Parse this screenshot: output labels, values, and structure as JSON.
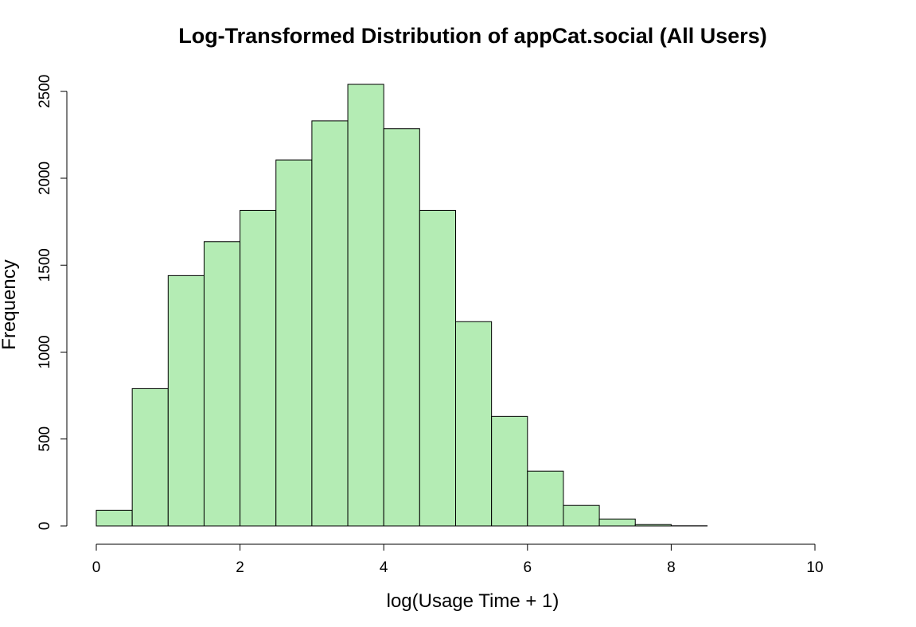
{
  "chart_data": {
    "type": "bar",
    "title": "Log-Transformed Distribution of appCat.social (All Users)",
    "xlabel": "log(Usage Time + 1)",
    "ylabel": "Frequency",
    "bar_color": "#b4ecb4",
    "bin_width": 0.5,
    "bins": [
      {
        "start": 0.0,
        "end": 0.5,
        "count": 90
      },
      {
        "start": 0.5,
        "end": 1.0,
        "count": 790
      },
      {
        "start": 1.0,
        "end": 1.5,
        "count": 1440
      },
      {
        "start": 1.5,
        "end": 2.0,
        "count": 1635
      },
      {
        "start": 2.0,
        "end": 2.5,
        "count": 1815
      },
      {
        "start": 2.5,
        "end": 3.0,
        "count": 2105
      },
      {
        "start": 3.0,
        "end": 3.5,
        "count": 2330
      },
      {
        "start": 3.5,
        "end": 4.0,
        "count": 2540
      },
      {
        "start": 4.0,
        "end": 4.5,
        "count": 2285
      },
      {
        "start": 4.5,
        "end": 5.0,
        "count": 1815
      },
      {
        "start": 5.0,
        "end": 5.5,
        "count": 1175
      },
      {
        "start": 5.5,
        "end": 6.0,
        "count": 630
      },
      {
        "start": 6.0,
        "end": 6.5,
        "count": 315
      },
      {
        "start": 6.5,
        "end": 7.0,
        "count": 118
      },
      {
        "start": 7.0,
        "end": 7.5,
        "count": 40
      },
      {
        "start": 7.5,
        "end": 8.0,
        "count": 8
      },
      {
        "start": 8.0,
        "end": 8.5,
        "count": 1
      },
      {
        "start": 8.5,
        "end": 9.0,
        "count": 0
      },
      {
        "start": 9.0,
        "end": 9.5,
        "count": 0
      },
      {
        "start": 9.5,
        "end": 10.0,
        "count": 0
      },
      {
        "start": 10.0,
        "end": 10.5,
        "count": 0
      }
    ],
    "x_ticks": [
      0,
      2,
      4,
      6,
      8,
      10
    ],
    "y_ticks": [
      0,
      500,
      1000,
      1500,
      2000,
      2500
    ],
    "xlim": [
      0,
      10.5
    ],
    "ylim": [
      0,
      2540
    ],
    "grid": false,
    "legend": "none"
  }
}
